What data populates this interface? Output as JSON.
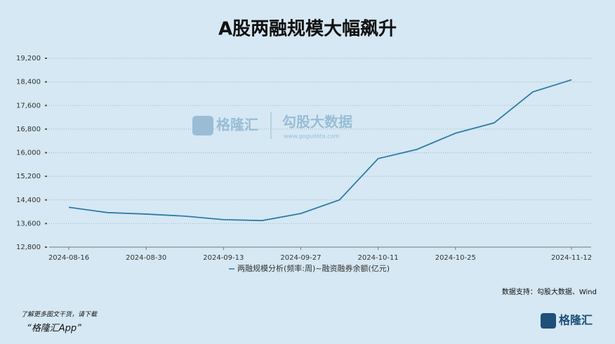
{
  "chart_data": {
    "type": "line",
    "title": "A股两融规模大幅飙升",
    "categories": [
      "2024-08-16",
      null,
      "2024-08-30",
      null,
      "2024-09-13",
      null,
      "2024-09-27",
      null,
      "2024-10-11",
      null,
      "2024-10-25",
      null,
      null,
      "2024-11-12"
    ],
    "series": [
      {
        "name": "两融规模分析(频率:周)~融资融券余额(亿元)",
        "color": "#2e7ca6",
        "values": [
          14150,
          13970,
          13920,
          13850,
          13730,
          13700,
          13940,
          14400,
          15800,
          16110,
          16660,
          17010,
          18060,
          18470
        ]
      }
    ],
    "ylim": [
      12800,
      19200
    ],
    "yticks": [
      {
        "value": 12800,
        "label": "12,800"
      },
      {
        "value": 13600,
        "label": "13,600"
      },
      {
        "value": 14400,
        "label": "14,400"
      },
      {
        "value": 15200,
        "label": "15,200"
      },
      {
        "value": 16000,
        "label": "16,000"
      },
      {
        "value": 16800,
        "label": "16,800"
      },
      {
        "value": 17600,
        "label": "17,600"
      },
      {
        "value": 18400,
        "label": "18,400"
      },
      {
        "value": 19200,
        "label": "19,200"
      }
    ],
    "grid": true,
    "source": "数据支持：勾股大数据、Wind",
    "watermark": {
      "brand": "格隆汇",
      "partner": "勾股大数据",
      "url": "www.gogudata.com"
    }
  },
  "footer": {
    "line1": "了解更多图文干货，请下载",
    "line2": "“格隆汇App”",
    "logo": "格隆汇"
  }
}
